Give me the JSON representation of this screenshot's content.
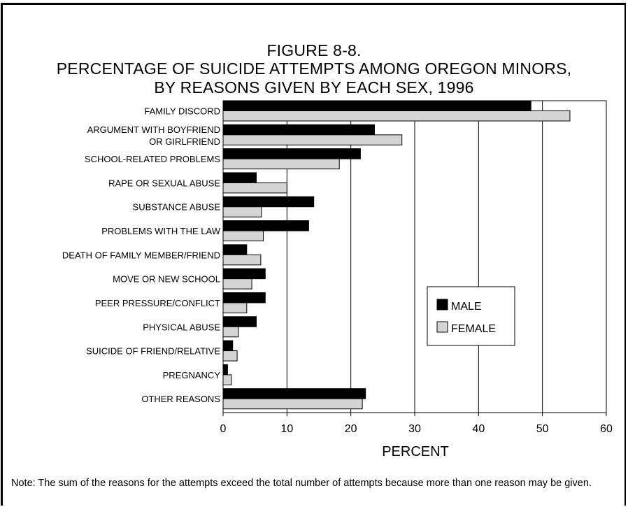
{
  "chart_data": {
    "type": "bar",
    "orientation": "horizontal",
    "title_lines": [
      "FIGURE 8-8.",
      "PERCENTAGE OF SUICIDE ATTEMPTS AMONG OREGON MINORS,",
      "BY REASONS GIVEN BY EACH SEX, 1996"
    ],
    "categories": [
      [
        "FAMILY DISCORD"
      ],
      [
        "ARGUMENT WITH BOYFRIEND",
        "OR GIRLFRIEND"
      ],
      [
        "SCHOOL-RELATED PROBLEMS"
      ],
      [
        "RAPE OR SEXUAL ABUSE"
      ],
      [
        "SUBSTANCE ABUSE"
      ],
      [
        "PROBLEMS WITH THE LAW"
      ],
      [
        "DEATH OF FAMILY MEMBER/FRIEND"
      ],
      [
        "MOVE OR NEW SCHOOL"
      ],
      [
        "PEER PRESSURE/CONFLICT"
      ],
      [
        "PHYSICAL ABUSE"
      ],
      [
        "SUICIDE OF FRIEND/RELATIVE"
      ],
      [
        "PREGNANCY"
      ],
      [
        "OTHER REASONS"
      ]
    ],
    "series": [
      {
        "name": "MALE",
        "color": "#000000",
        "values": [
          48.2,
          23.7,
          21.5,
          5.2,
          14.2,
          13.4,
          3.7,
          6.6,
          6.6,
          5.2,
          1.5,
          0.7,
          22.3
        ]
      },
      {
        "name": "FEMALE",
        "color": "#d4d4d4",
        "values": [
          54.3,
          28.0,
          18.2,
          10.0,
          6.0,
          6.3,
          5.9,
          4.5,
          3.7,
          2.4,
          2.2,
          1.3,
          21.8
        ]
      }
    ],
    "xlabel": "PERCENT",
    "xlim": [
      0,
      60
    ],
    "xticks": [
      0,
      10,
      20,
      30,
      40,
      50,
      60
    ],
    "grid": "vertical",
    "legend_position": "lower-right"
  },
  "note": "Note:  The sum of the reasons for the attempts exceed the total number of attempts because more than one reason may be given."
}
